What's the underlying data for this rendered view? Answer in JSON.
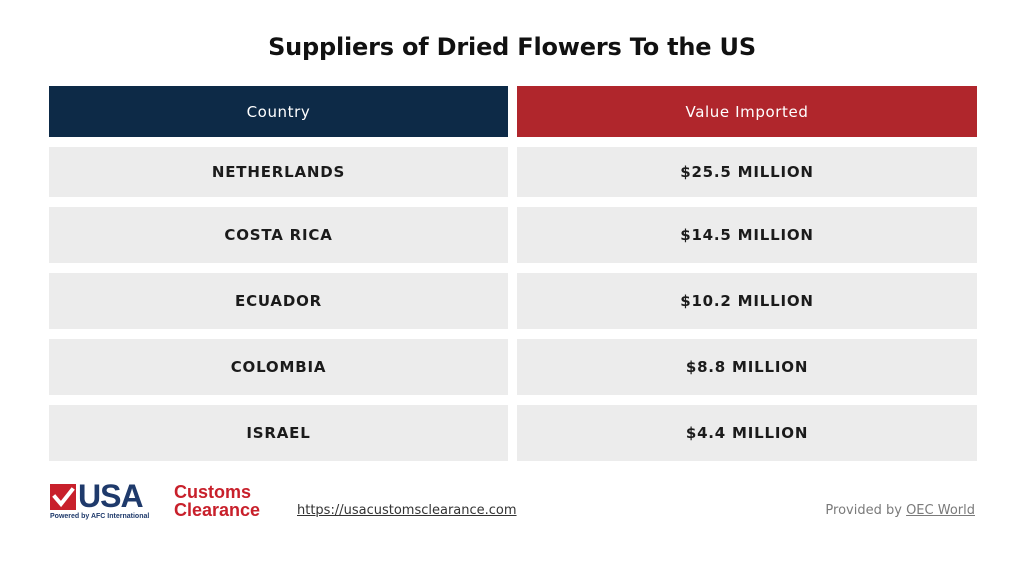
{
  "title": "Suppliers of Dried Flowers To the US",
  "table": {
    "headers": {
      "country": "Country",
      "value": "Value Imported"
    },
    "rows": [
      {
        "country": "NETHERLANDS",
        "value": "$25.5 MILLION"
      },
      {
        "country": "COSTA RICA",
        "value": "$14.5 MILLION"
      },
      {
        "country": "ECUADOR",
        "value": "$10.2 MILLION"
      },
      {
        "country": "COLOMBIA",
        "value": "$8.8 MILLION"
      },
      {
        "country": "ISRAEL",
        "value": "$4.4 MILLION"
      }
    ]
  },
  "footer": {
    "logo": {
      "usa": "USA",
      "customs": "Customs",
      "clearance": "Clearance",
      "powered": "Powered by AFC International"
    },
    "site_url": "https://usacustomsclearance.com",
    "provided_by": "Provided by",
    "source": "OEC World"
  },
  "colors": {
    "header_country": "#0d2a47",
    "header_value": "#b0262c",
    "cell_background": "#ececec",
    "logo_navy": "#1f3a6b",
    "logo_red": "#c8202b"
  }
}
